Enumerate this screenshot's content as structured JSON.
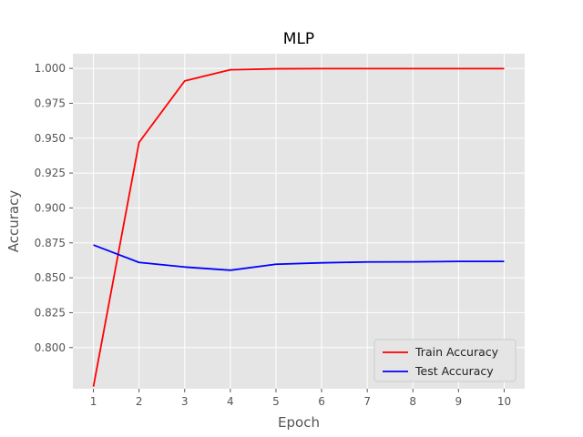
{
  "chart_data": {
    "type": "line",
    "title": "MLP",
    "xlabel": "Epoch",
    "ylabel": "Accuracy",
    "x": [
      1,
      2,
      3,
      4,
      5,
      6,
      7,
      8,
      9,
      10
    ],
    "x_ticks": [
      "1",
      "2",
      "3",
      "4",
      "5",
      "6",
      "7",
      "8",
      "9",
      "10"
    ],
    "y_ticks": [
      "0.800",
      "0.825",
      "0.850",
      "0.875",
      "0.900",
      "0.925",
      "0.950",
      "0.975",
      "1.000"
    ],
    "xlim": [
      0.55,
      10.45
    ],
    "ylim": [
      0.7705,
      1.0105
    ],
    "grid": true,
    "legend_position": "lower-right",
    "series": [
      {
        "name": "Train Accuracy",
        "color": "#ff0000",
        "values": [
          0.772,
          0.947,
          0.991,
          0.999,
          0.9997,
          0.9998,
          0.9998,
          0.9998,
          0.9998,
          0.9998
        ]
      },
      {
        "name": "Test Accuracy",
        "color": "#0000ff",
        "values": [
          0.8735,
          0.861,
          0.8577,
          0.8554,
          0.8597,
          0.8607,
          0.8613,
          0.8614,
          0.8617,
          0.8617
        ]
      }
    ]
  },
  "colors": {
    "plot_background": "#e5e5e5",
    "grid": "#ffffff",
    "legend_border": "#cccccc"
  }
}
